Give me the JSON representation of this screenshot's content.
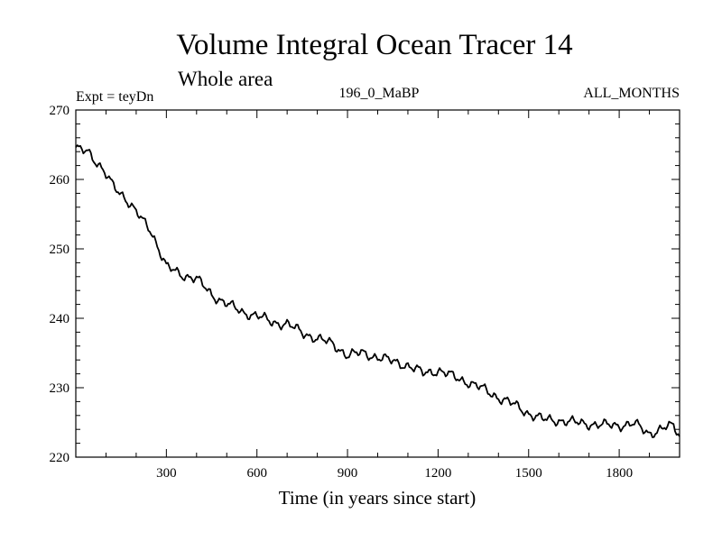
{
  "chart_data": {
    "type": "line",
    "title": "Volume Integral Ocean Tracer 14",
    "subtitle": "Whole area",
    "left_label": "Expt = teyDn",
    "center_label": "196_0_MaBP",
    "right_label": "ALL_MONTHS",
    "xlabel": "Time (in years since start)",
    "ylabel": "",
    "xlim": [
      0,
      2000
    ],
    "ylim": [
      220,
      270
    ],
    "x_ticks": [
      300,
      600,
      900,
      1200,
      1500,
      1800
    ],
    "y_ticks": [
      220,
      230,
      240,
      250,
      260,
      270
    ],
    "grid": false,
    "series": [
      {
        "name": "Volume Integral Ocean Tracer 14",
        "color": "#000000",
        "x": [
          0,
          40,
          80,
          120,
          160,
          200,
          250,
          300,
          350,
          400,
          450,
          500,
          550,
          600,
          650,
          700,
          750,
          800,
          850,
          900,
          950,
          1000,
          1050,
          1100,
          1150,
          1200,
          1250,
          1300,
          1350,
          1400,
          1450,
          1500,
          1550,
          1600,
          1650,
          1700,
          1750,
          1800,
          1850,
          1900,
          1950,
          1980,
          2000
        ],
        "y": [
          264.2,
          264.3,
          261.8,
          259.3,
          257.6,
          255.2,
          252.6,
          247.4,
          246.3,
          245.7,
          243.4,
          242.1,
          240.9,
          240.4,
          239.4,
          239.2,
          237.9,
          237.1,
          236.3,
          234.7,
          235.0,
          234.4,
          233.8,
          233.2,
          232.1,
          232.5,
          231.6,
          230.8,
          229.8,
          228.6,
          227.6,
          226.3,
          225.4,
          225.3,
          225.0,
          224.8,
          224.6,
          224.6,
          224.8,
          223.4,
          224.2,
          224.5,
          223.1
        ]
      }
    ]
  }
}
